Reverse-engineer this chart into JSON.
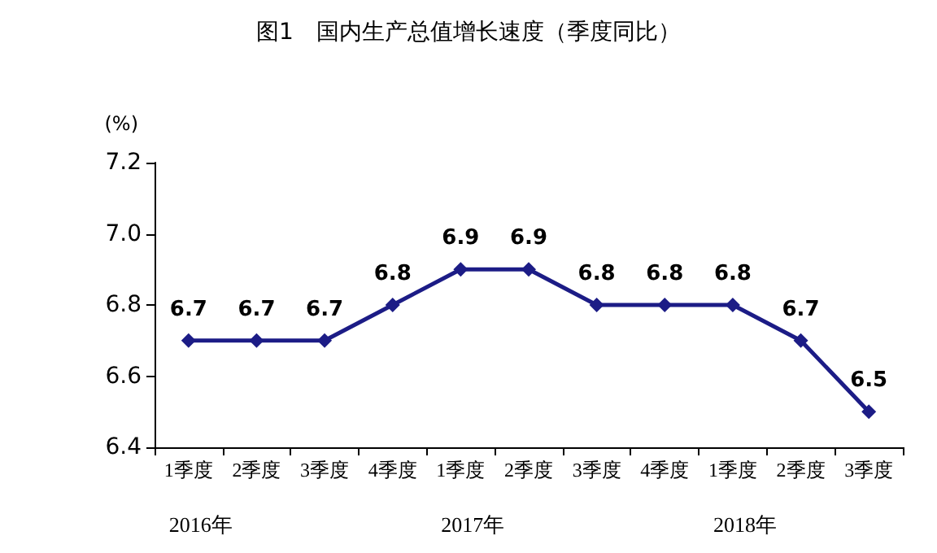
{
  "chart_data": {
    "type": "line",
    "title": "图1　国内生产总值增长速度（季度同比）",
    "ylabel": "(%)",
    "categories": [
      "1季度",
      "2季度",
      "3季度",
      "4季度",
      "1季度",
      "2季度",
      "3季度",
      "4季度",
      "1季度",
      "2季度",
      "3季度"
    ],
    "series": [
      {
        "color": "#1c1c86",
        "values": [
          6.7,
          6.7,
          6.7,
          6.8,
          6.9,
          6.9,
          6.8,
          6.8,
          6.8,
          6.7,
          6.5
        ]
      }
    ],
    "ylim": [
      6.4,
      7.2
    ],
    "yticks": [
      {
        "value": 6.4,
        "label": "6.4"
      },
      {
        "value": 6.6,
        "label": "6.6"
      },
      {
        "value": 6.8,
        "label": "6.8"
      },
      {
        "value": 7,
        "label": "7.0"
      },
      {
        "value": 7.2,
        "label": "7.2"
      }
    ],
    "annotations": [
      "2016年",
      "2017年",
      "2018年"
    ],
    "grid": false,
    "marker": "diamond",
    "line_style": "solid",
    "data_labels": true
  }
}
